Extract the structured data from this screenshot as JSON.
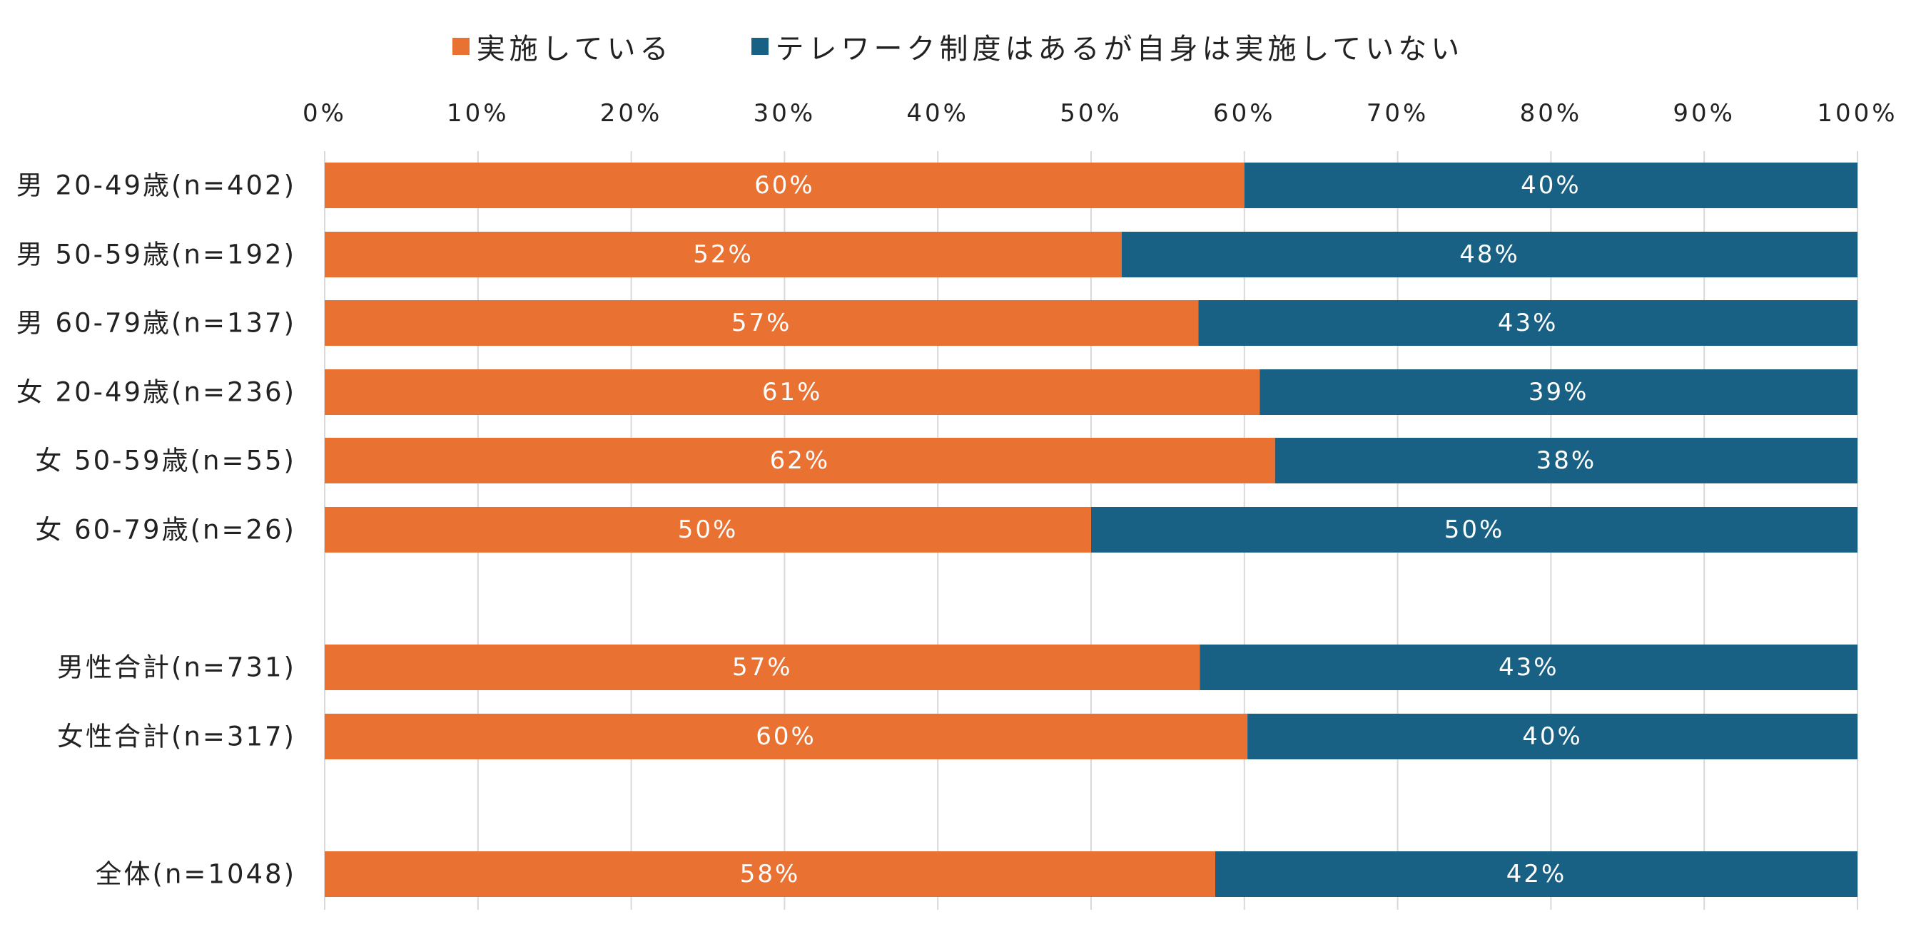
{
  "chart_data": {
    "type": "bar",
    "orientation": "horizontal",
    "stacked": true,
    "categories": [
      "男 20-49歳(n=402)",
      "男 50-59歳(n=192)",
      "男 60-79歳(n=137)",
      "女 20-49歳(n=236)",
      "女 50-59歳(n=55)",
      "女 60-79歳(n=26)",
      "男性合計(n=731)",
      "女性合計(n=317)",
      "全体(n=1048)"
    ],
    "series": [
      {
        "name": "実施している",
        "color": "#E97132",
        "values": [
          60,
          52,
          57,
          61,
          62,
          50,
          57.1,
          60.2,
          58.1
        ],
        "labels": [
          "60%",
          "52%",
          "57%",
          "61%",
          "62%",
          "50%",
          "57%",
          "60%",
          "58%"
        ]
      },
      {
        "name": "テレワーク制度はあるが自身は実施していない",
        "color": "#196184",
        "values": [
          40,
          48,
          43,
          39,
          38,
          50,
          42.9,
          39.8,
          41.9
        ],
        "labels": [
          "40%",
          "48%",
          "43%",
          "39%",
          "38%",
          "50%",
          "43%",
          "40%",
          "42%"
        ]
      }
    ],
    "xaxis": {
      "range": [
        0,
        100
      ],
      "ticks": [
        "0%",
        "10%",
        "20%",
        "30%",
        "40%",
        "50%",
        "60%",
        "70%",
        "80%",
        "90%",
        "100%"
      ],
      "position": "top"
    },
    "grid": true,
    "legend_position": "top"
  }
}
